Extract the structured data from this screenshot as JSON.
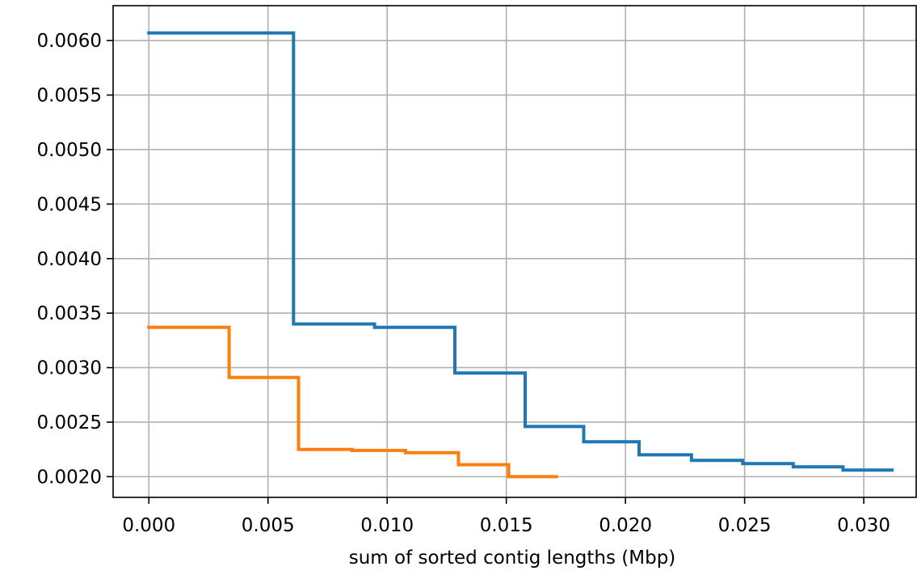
{
  "chart_data": {
    "type": "line",
    "xlabel": "sum of sorted contig lengths (Mbp)",
    "xlim": [
      -0.0015,
      0.0322
    ],
    "ylim": [
      0.00181,
      0.00632
    ],
    "grid": true,
    "x_ticks": [
      "0.000",
      "0.005",
      "0.010",
      "0.015",
      "0.020",
      "0.025",
      "0.030"
    ],
    "y_ticks": [
      "0.0020",
      "0.0025",
      "0.0030",
      "0.0035",
      "0.0040",
      "0.0045",
      "0.0050",
      "0.0055",
      "0.0060"
    ],
    "series": [
      {
        "color": "#1f77b4",
        "points": [
          [
            0.0,
            0.00607
          ],
          [
            0.00607,
            0.00607
          ],
          [
            0.00607,
            0.0034
          ],
          [
            0.00947,
            0.0034
          ],
          [
            0.00947,
            0.00337
          ],
          [
            0.01284,
            0.00337
          ],
          [
            0.01284,
            0.00295
          ],
          [
            0.01579,
            0.00295
          ],
          [
            0.01579,
            0.00246
          ],
          [
            0.01825,
            0.00246
          ],
          [
            0.01825,
            0.00232
          ],
          [
            0.02057,
            0.00232
          ],
          [
            0.02057,
            0.0022
          ],
          [
            0.02277,
            0.0022
          ],
          [
            0.02277,
            0.00215
          ],
          [
            0.02492,
            0.00215
          ],
          [
            0.02492,
            0.00212
          ],
          [
            0.02704,
            0.00212
          ],
          [
            0.02704,
            0.00209
          ],
          [
            0.02913,
            0.00209
          ],
          [
            0.02913,
            0.00206
          ],
          [
            0.03119,
            0.00206
          ]
        ]
      },
      {
        "color": "#ff7f0e",
        "points": [
          [
            0.0,
            0.00337
          ],
          [
            0.00337,
            0.00337
          ],
          [
            0.00337,
            0.00291
          ],
          [
            0.00628,
            0.00291
          ],
          [
            0.00628,
            0.00225
          ],
          [
            0.00853,
            0.00225
          ],
          [
            0.00853,
            0.00224
          ],
          [
            0.01077,
            0.00224
          ],
          [
            0.01077,
            0.00222
          ],
          [
            0.01299,
            0.00222
          ],
          [
            0.01299,
            0.00211
          ],
          [
            0.0151,
            0.00211
          ],
          [
            0.0151,
            0.002
          ],
          [
            0.0171,
            0.002
          ]
        ]
      }
    ]
  }
}
